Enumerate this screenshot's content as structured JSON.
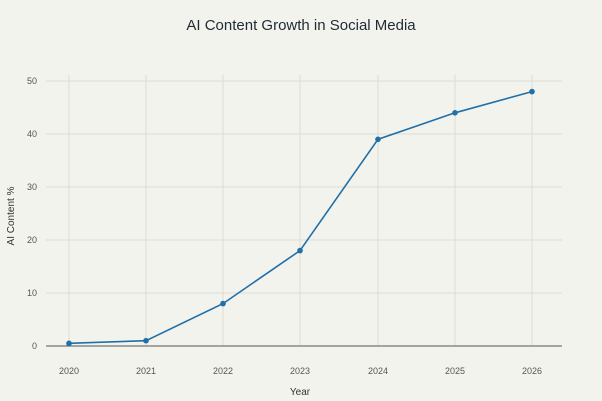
{
  "chart_data": {
    "type": "line",
    "title": "AI Content Growth in Social Media",
    "xlabel": "Year",
    "ylabel": "AI Content %",
    "x": [
      2020,
      2021,
      2022,
      2023,
      2024,
      2025,
      2026
    ],
    "series": [
      {
        "values": [
          0.5,
          1,
          8,
          18,
          39,
          44,
          48
        ]
      }
    ],
    "ylim": [
      0,
      50
    ],
    "yticks": [
      0,
      10,
      20,
      30,
      40,
      50
    ],
    "grid": true,
    "legend": "none",
    "colors": {
      "line": "#1f6fa8",
      "background": "#f3f3ee"
    }
  }
}
